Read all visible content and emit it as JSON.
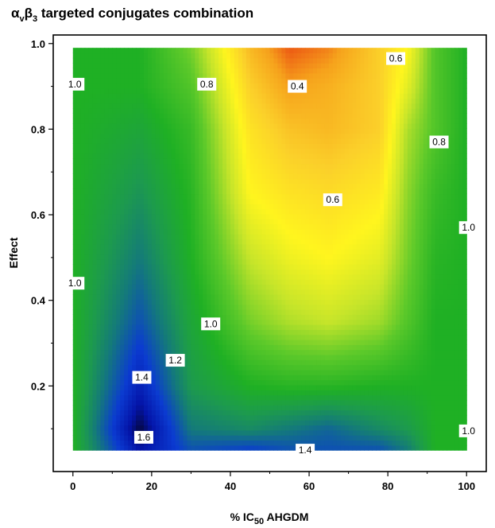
{
  "chart_data": {
    "type": "heatmap",
    "title": {
      "alpha": "α",
      "sub_v": "v",
      "beta": "β",
      "sub_3": "3",
      "rest": " targeted conjugates combination"
    },
    "xlabel": {
      "prefix": "% IC",
      "sub": "50",
      "suffix": " AHGDM"
    },
    "ylabel": "Effect",
    "xlim": [
      -5,
      105
    ],
    "ylim": [
      0,
      1.02
    ],
    "x_ticks": [
      {
        "value": 0,
        "label": "0"
      },
      {
        "value": 20,
        "label": "20"
      },
      {
        "value": 40,
        "label": "40"
      },
      {
        "value": 60,
        "label": "60"
      },
      {
        "value": 80,
        "label": "80"
      },
      {
        "value": 100,
        "label": "100"
      }
    ],
    "y_ticks": [
      {
        "value": 0.2,
        "label": "0.2"
      },
      {
        "value": 0.4,
        "label": "0.4"
      },
      {
        "value": 0.6,
        "label": "0.6"
      },
      {
        "value": 0.8,
        "label": "0.8"
      },
      {
        "value": 1.0,
        "label": "1.0"
      }
    ],
    "x_grid": [
      0,
      17,
      30,
      45,
      55,
      65,
      78,
      85,
      92,
      100
    ],
    "y_grid": [
      0.05,
      0.1,
      0.2,
      0.35,
      0.5,
      0.65,
      0.8,
      0.9,
      0.99
    ],
    "z": [
      [
        1.0,
        1.5,
        1.3,
        1.35,
        1.3,
        1.3,
        1.3,
        1.2,
        1.0,
        1.0
      ],
      [
        1.0,
        1.6,
        1.2,
        1.15,
        1.2,
        1.25,
        1.15,
        1.1,
        1.0,
        1.0
      ],
      [
        1.0,
        1.45,
        1.1,
        1.0,
        0.98,
        0.98,
        1.0,
        1.0,
        1.0,
        1.0
      ],
      [
        1.0,
        1.3,
        1.05,
        0.85,
        0.78,
        0.75,
        0.8,
        0.9,
        1.0,
        1.0
      ],
      [
        1.0,
        1.2,
        1.0,
        0.75,
        0.68,
        0.65,
        0.7,
        0.85,
        0.98,
        1.0
      ],
      [
        1.0,
        1.12,
        0.98,
        0.65,
        0.6,
        0.58,
        0.62,
        0.82,
        0.95,
        1.0
      ],
      [
        1.0,
        1.05,
        0.95,
        0.6,
        0.52,
        0.5,
        0.55,
        0.78,
        0.9,
        1.0
      ],
      [
        1.0,
        1.0,
        0.9,
        0.55,
        0.45,
        0.48,
        0.55,
        0.7,
        0.9,
        1.0
      ],
      [
        1.0,
        1.0,
        0.85,
        0.5,
        0.38,
        0.42,
        0.55,
        0.65,
        0.9,
        1.0
      ]
    ],
    "color_scale": [
      {
        "v": 0.35,
        "c": "#e83a10"
      },
      {
        "v": 0.45,
        "c": "#f6a21c"
      },
      {
        "v": 0.55,
        "c": "#fbd02a"
      },
      {
        "v": 0.65,
        "c": "#fff51e"
      },
      {
        "v": 0.75,
        "c": "#c7e52a"
      },
      {
        "v": 0.88,
        "c": "#5cc92a"
      },
      {
        "v": 1.0,
        "c": "#1fb024"
      },
      {
        "v": 1.1,
        "c": "#1d9a4e"
      },
      {
        "v": 1.2,
        "c": "#147a7a"
      },
      {
        "v": 1.35,
        "c": "#0b3bd1"
      },
      {
        "v": 1.5,
        "c": "#0414a8"
      },
      {
        "v": 1.6,
        "c": "#050840"
      }
    ],
    "contour_labels": [
      {
        "x": 0.5,
        "y": 0.905,
        "text": "1.0"
      },
      {
        "x": 34,
        "y": 0.905,
        "text": "0.8"
      },
      {
        "x": 57,
        "y": 0.9,
        "text": "0.4"
      },
      {
        "x": 82,
        "y": 0.965,
        "text": "0.6"
      },
      {
        "x": 93,
        "y": 0.77,
        "text": "0.8"
      },
      {
        "x": 66,
        "y": 0.635,
        "text": "0.6"
      },
      {
        "x": 100.5,
        "y": 0.57,
        "text": "1.0"
      },
      {
        "x": 0.5,
        "y": 0.44,
        "text": "1.0"
      },
      {
        "x": 35,
        "y": 0.345,
        "text": "1.0"
      },
      {
        "x": 26,
        "y": 0.26,
        "text": "1.2"
      },
      {
        "x": 17.5,
        "y": 0.22,
        "text": "1.4"
      },
      {
        "x": 18,
        "y": 0.08,
        "text": "1.6"
      },
      {
        "x": 59,
        "y": 0.05,
        "text": "1.4"
      },
      {
        "x": 100.5,
        "y": 0.095,
        "text": "1.0"
      }
    ]
  }
}
